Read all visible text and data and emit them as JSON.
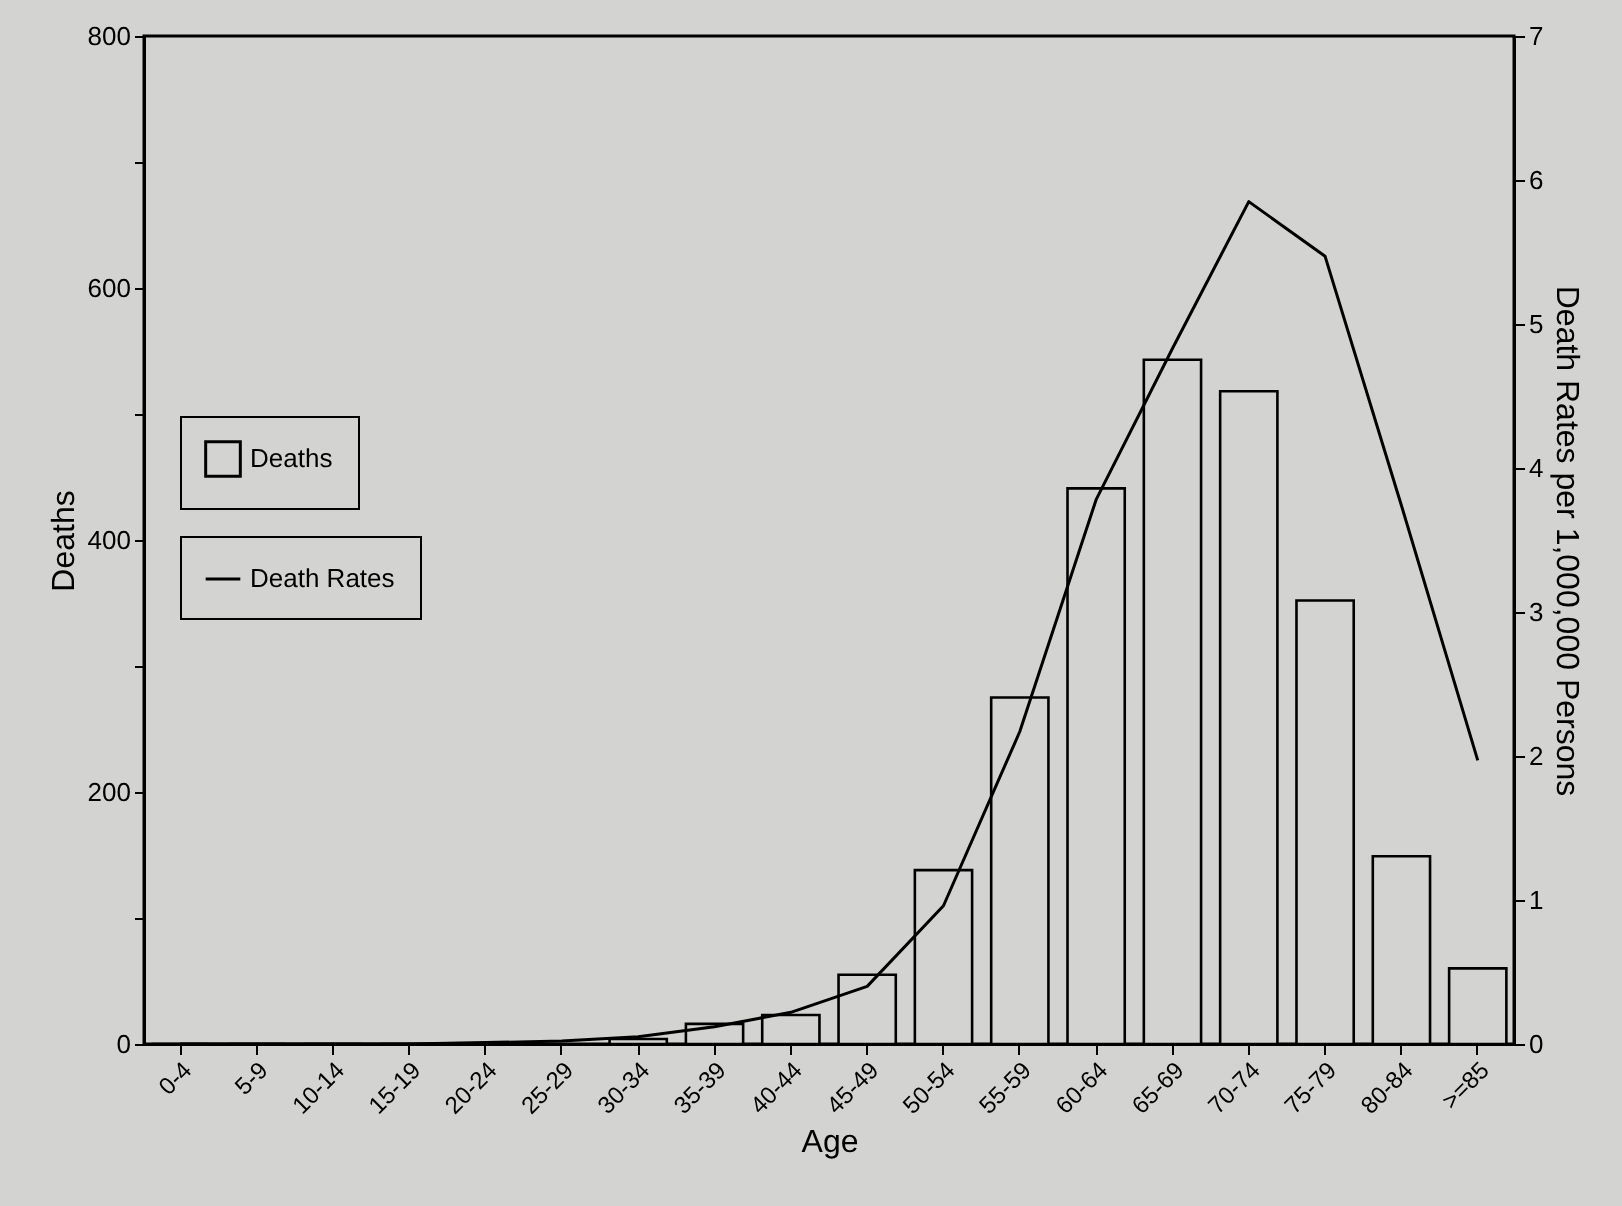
{
  "chart_data": {
    "type": "bar",
    "xlabel": "Age",
    "ylabel": "Deaths",
    "y2label": "Death Rates per 1,000,000 Persons",
    "categories": [
      "0-4",
      "5-9",
      "10-14",
      "15-19",
      "20-24",
      "25-29",
      "30-34",
      "35-39",
      "40-44",
      "45-49",
      "50-54",
      "55-59",
      "60-64",
      "65-69",
      "70-74",
      "75-79",
      "80-84",
      ">=85"
    ],
    "series": [
      {
        "name": "Deaths",
        "color": "#000000",
        "values": [
          0,
          0,
          0,
          0,
          0,
          null,
          4,
          16,
          23,
          55,
          138,
          275,
          441,
          543,
          518,
          352,
          149,
          60
        ]
      },
      {
        "name": "Death Rates",
        "type": "line",
        "axis": "y2",
        "color": "#000000",
        "values": [
          0,
          0,
          0,
          0,
          0.01,
          0.02,
          0.05,
          0.12,
          0.22,
          0.4,
          0.96,
          2.17,
          3.78,
          4.83,
          5.85,
          5.47,
          3.74,
          1.97
        ]
      }
    ],
    "ylim": [
      0,
      800
    ],
    "yticks": [
      0,
      {
        "value": 100,
        "label": null
      },
      200,
      {
        "value": 300,
        "label": null
      },
      400,
      {
        "value": 500,
        "label": null
      },
      600,
      {
        "value": 700,
        "label": null
      },
      800
    ],
    "y2lim": [
      0,
      7
    ],
    "y2ticks": [
      0,
      1,
      2,
      3,
      4,
      5,
      6,
      7
    ],
    "legend": "left",
    "grid": false
  }
}
